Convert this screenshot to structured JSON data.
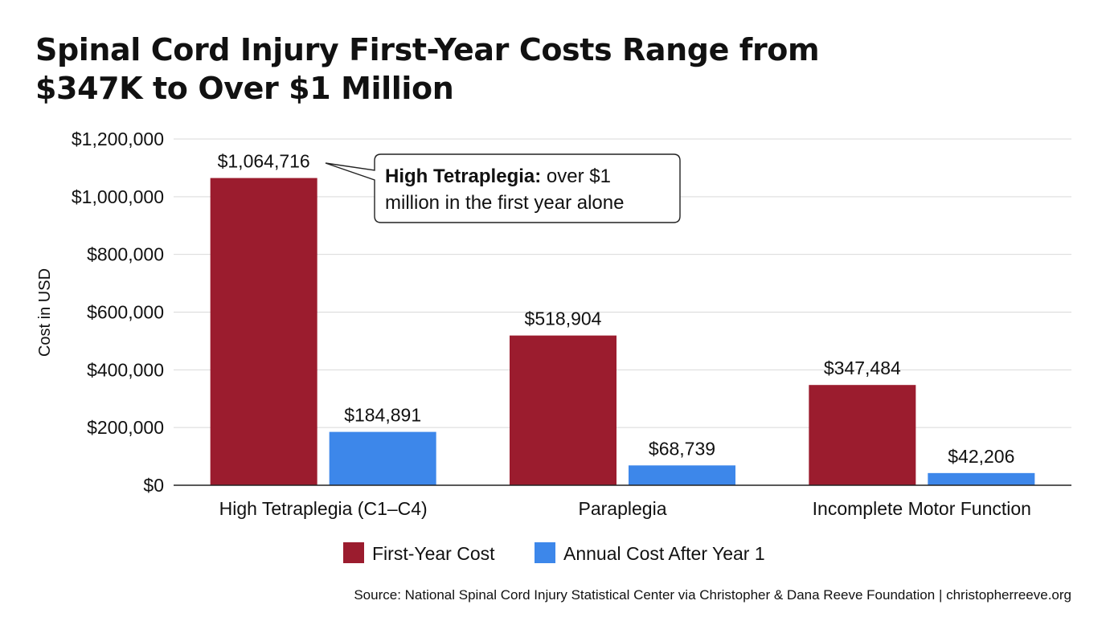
{
  "chart_data": {
    "type": "bar",
    "title_lines": [
      "Spinal Cord Injury First-Year Costs Range from",
      "$347K to Over $1 Million"
    ],
    "xlabel": "",
    "ylabel": "Cost in USD",
    "ylim": [
      0,
      1200000
    ],
    "yticks": [
      0,
      200000,
      400000,
      600000,
      800000,
      1000000,
      1200000
    ],
    "ytick_labels": [
      "$0",
      "$200,000",
      "$400,000",
      "$600,000",
      "$800,000",
      "$1,000,000",
      "$1,200,000"
    ],
    "categories": [
      "High Tetraplegia (C1–C4)",
      "Paraplegia",
      "Incomplete Motor Function"
    ],
    "series": [
      {
        "name": "First-Year Cost",
        "color": "#9b1c2e",
        "values": [
          1064716,
          518904,
          347484
        ],
        "labels": [
          "$1,064,716",
          "$518,904",
          "$347,484"
        ]
      },
      {
        "name": "Annual Cost After Year 1",
        "color": "#3d87ea",
        "values": [
          184891,
          68739,
          42206
        ],
        "labels": [
          "$184,891",
          "$68,739",
          "$42,206"
        ]
      }
    ],
    "grid": true,
    "legend_position": "bottom",
    "annotation": {
      "bold": "High Tetraplegia:",
      "line1_rest": "over $1",
      "line2": "million in the first year alone",
      "points_to": "High Tetraplegia (C1–C4) First-Year Cost"
    },
    "source": "Source: National Spinal Cord Injury Statistical Center via Christopher & Dana Reeve Foundation | christopherreeve.org"
  }
}
